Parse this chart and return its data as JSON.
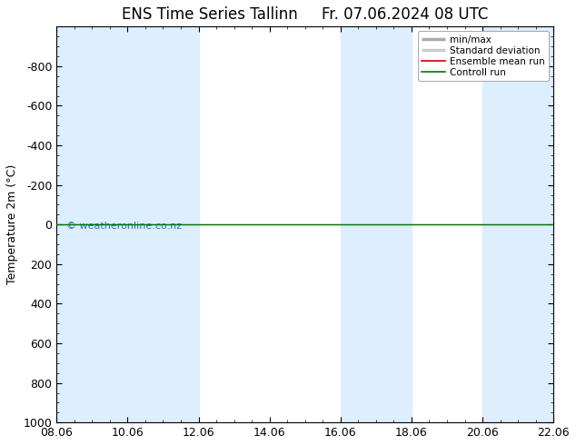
{
  "title": "ENS Time Series Tallinn",
  "title2": "Fr. 07.06.2024 08 UTC",
  "ylabel": "Temperature 2m (°C)",
  "ylim": [
    -1000,
    1000
  ],
  "yticks": [
    -800,
    -600,
    -400,
    -200,
    0,
    200,
    400,
    600,
    800,
    1000
  ],
  "x_dates": [
    "08.06",
    "10.06",
    "12.06",
    "14.06",
    "16.06",
    "18.06",
    "20.06",
    "22.06"
  ],
  "x_positions": [
    0,
    2,
    4,
    6,
    8,
    10,
    12,
    14
  ],
  "xlim": [
    0,
    14
  ],
  "shaded_bands": [
    [
      0,
      2
    ],
    [
      2,
      4
    ],
    [
      8,
      10
    ],
    [
      12,
      14
    ]
  ],
  "shaded_color": "#ddeeff",
  "bg_color": "#ffffff",
  "plot_bg_color": "#ffffff",
  "watermark": "© weatheronline.co.nz",
  "watermark_color": "#2277cc",
  "control_run_value": 0,
  "control_run_color": "#007700",
  "ensemble_mean_color": "#cc0000",
  "minmax_line_color": "#aaaaaa",
  "std_dev_color": "#bbbbbb",
  "legend_labels": [
    "min/max",
    "Standard deviation",
    "Ensemble mean run",
    "Controll run"
  ],
  "legend_colors": [
    "#aaaaaa",
    "#cccccc",
    "#cc0000",
    "#007700"
  ],
  "title_fontsize": 12,
  "axis_label_fontsize": 9,
  "tick_fontsize": 9
}
